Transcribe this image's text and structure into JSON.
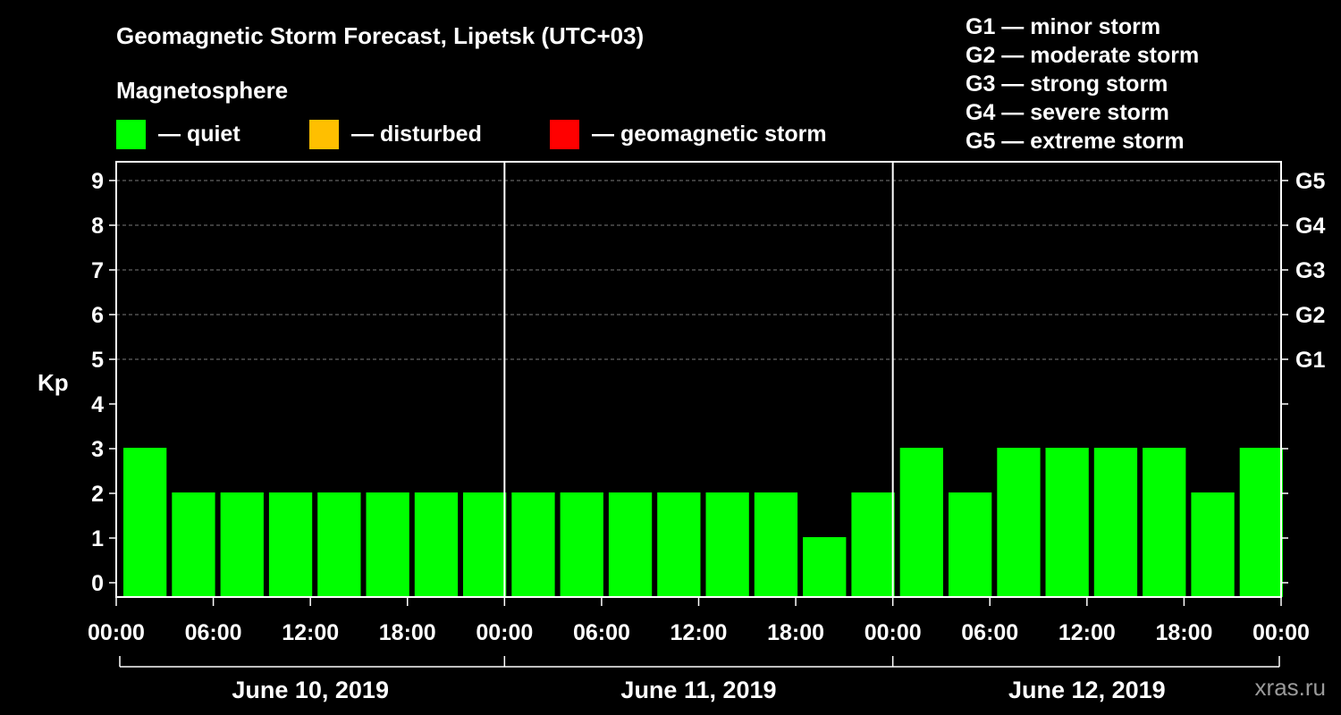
{
  "header": {
    "title": "Geomagnetic Storm Forecast, Lipetsk (UTC+03)",
    "subtitle": "Magnetosphere"
  },
  "legend": {
    "states": [
      {
        "label": "— quiet",
        "color": "#00ff00"
      },
      {
        "label": "— disturbed",
        "color": "#ffbf00"
      },
      {
        "label": "— geomagnetic storm",
        "color": "#ff0000"
      }
    ],
    "scale": [
      "G1 — minor storm",
      "G2 — moderate storm",
      "G3 — strong storm",
      "G4 — severe storm",
      "G5 — extreme storm"
    ]
  },
  "watermark": "xras.ru",
  "chart_data": {
    "type": "bar",
    "ylabel": "Kp",
    "ylim": [
      0,
      9
    ],
    "yticks": [
      "0",
      "1",
      "2",
      "3",
      "4",
      "5",
      "6",
      "7",
      "8",
      "9"
    ],
    "right_labels": [
      {
        "kp": 5,
        "label": "G1"
      },
      {
        "kp": 6,
        "label": "G2"
      },
      {
        "kp": 7,
        "label": "G3"
      },
      {
        "kp": 8,
        "label": "G4"
      },
      {
        "kp": 9,
        "label": "G5"
      }
    ],
    "grid": "dashed at Kp 5–9",
    "days": [
      "June 10, 2019",
      "June 11, 2019",
      "June 12, 2019"
    ],
    "xtick_labels": [
      "00:00",
      "06:00",
      "12:00",
      "18:00",
      "00:00",
      "06:00",
      "12:00",
      "18:00",
      "00:00",
      "06:00",
      "12:00",
      "18:00",
      "00:00"
    ],
    "interval_hours": 3,
    "values": [
      3,
      2,
      2,
      2,
      2,
      2,
      2,
      2,
      2,
      2,
      2,
      2,
      2,
      2,
      1,
      2,
      3,
      2,
      3,
      3,
      3,
      3,
      2,
      3
    ],
    "colors": {
      "quiet": "#00ff00",
      "disturbed": "#ffbf00",
      "storm": "#ff0000"
    }
  }
}
